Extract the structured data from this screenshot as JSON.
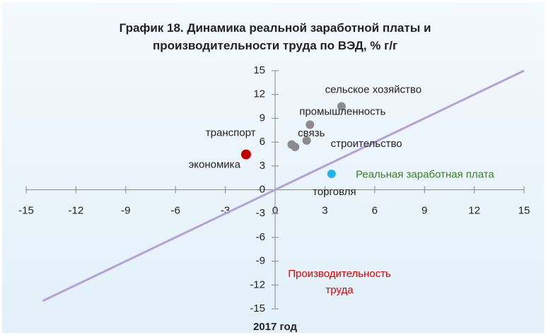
{
  "chart_data": {
    "type": "scatter",
    "title": "График 18. Динамика реальной заработной платы и производительности труда по ВЭД, % г/г",
    "x_label": "Реальная заработная плата",
    "y_label": "Производительность труда",
    "footer": "2017 год",
    "xlim": [
      -15,
      15
    ],
    "xticks": [
      -15,
      -12,
      -9,
      -6,
      -3,
      0,
      3,
      6,
      9,
      12,
      15
    ],
    "ylim": [
      -15,
      15
    ],
    "yticks": [
      -15,
      -12,
      -9,
      -6,
      -3,
      0,
      3,
      6,
      9,
      12,
      15
    ],
    "line": {
      "color": "#b3a2d4",
      "x": [
        -14,
        15
      ],
      "values": [
        -14,
        15
      ]
    },
    "series": [
      {
        "name": "сельское хозяйство",
        "color": "#8c8c8c",
        "x": [
          4.0
        ],
        "values": [
          10.5
        ]
      },
      {
        "name": "промышленность",
        "color": "#8c8c8c",
        "x": [
          2.1
        ],
        "values": [
          8.2
        ]
      },
      {
        "name": "строительство",
        "color": "#8c8c8c",
        "x": [
          1.9
        ],
        "values": [
          6.2
        ]
      },
      {
        "name": "транспорт",
        "color": "#8c8c8c",
        "x": [
          1.0
        ],
        "values": [
          5.7
        ]
      },
      {
        "name": "связь",
        "color": "#8c8c8c",
        "x": [
          1.2
        ],
        "values": [
          5.4
        ]
      },
      {
        "name": "экономика",
        "color": "#c00000",
        "x": [
          -1.75
        ],
        "values": [
          4.45
        ]
      },
      {
        "name": "торговля",
        "color": "#1fb4ea",
        "x": [
          3.4
        ],
        "values": [
          2.0
        ]
      }
    ]
  }
}
